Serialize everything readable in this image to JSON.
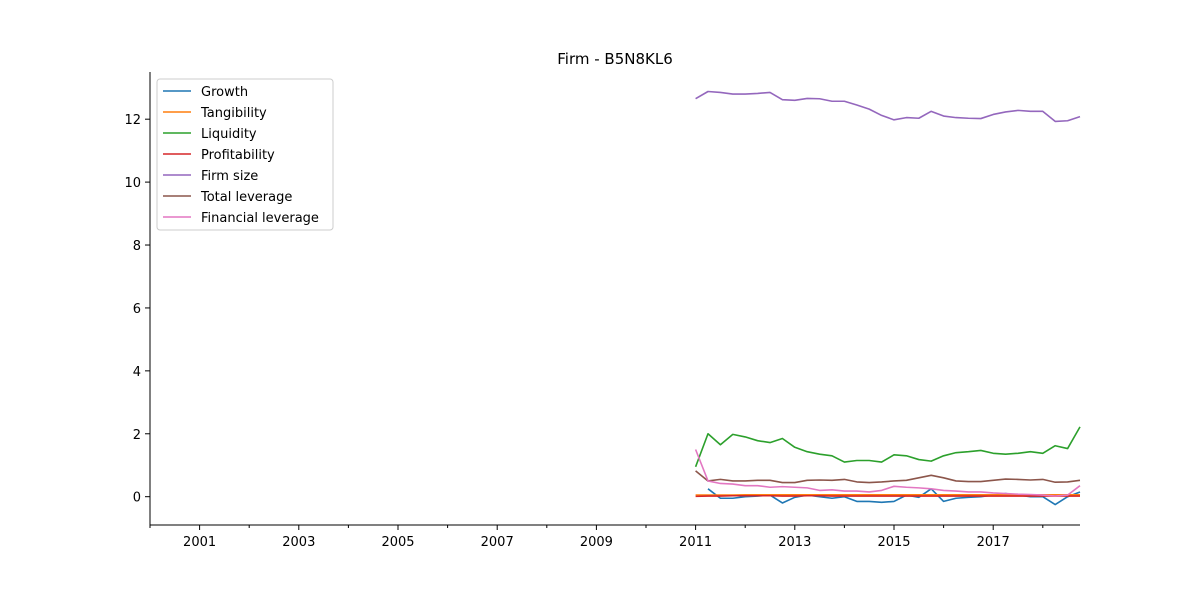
{
  "chart_data": {
    "type": "line",
    "title": "Firm - B5N8KL6",
    "xlabel": "",
    "ylabel": "",
    "xlim": [
      2000.0,
      2018.75
    ],
    "ylim": [
      -0.9,
      13.5
    ],
    "x_ticks": [
      2001,
      2003,
      2005,
      2007,
      2009,
      2011,
      2013,
      2015,
      2017
    ],
    "x_tick_labels": [
      "2001",
      "2003",
      "2005",
      "2007",
      "2009",
      "2011",
      "2013",
      "2015",
      "2017"
    ],
    "y_ticks": [
      0,
      2,
      4,
      6,
      8,
      10,
      12
    ],
    "y_tick_labels": [
      "0",
      "2",
      "4",
      "6",
      "8",
      "10",
      "12"
    ],
    "grid": false,
    "legend_position": "top-left",
    "x": [
      2011.0,
      2011.25,
      2011.5,
      2011.75,
      2012.0,
      2012.25,
      2012.5,
      2012.75,
      2013.0,
      2013.25,
      2013.5,
      2013.75,
      2014.0,
      2014.25,
      2014.5,
      2014.75,
      2015.0,
      2015.25,
      2015.5,
      2015.75,
      2016.0,
      2016.25,
      2016.5,
      2016.75,
      2017.0,
      2017.25,
      2017.5,
      2017.75,
      2018.0,
      2018.25,
      2018.5,
      2018.75
    ],
    "series": [
      {
        "name": "Growth",
        "color": "#1f77b4",
        "values": [
          null,
          0.25,
          -0.05,
          -0.05,
          0.0,
          0.02,
          0.05,
          -0.2,
          -0.02,
          0.05,
          0.0,
          -0.05,
          0.0,
          -0.15,
          -0.15,
          -0.18,
          -0.15,
          0.05,
          -0.02,
          0.25,
          -0.15,
          -0.05,
          -0.02,
          0.0,
          0.05,
          0.1,
          0.05,
          0.0,
          0.0,
          -0.25,
          0.0,
          0.15
        ]
      },
      {
        "name": "Tangibility",
        "color": "#ff7f0e",
        "values": [
          0.05,
          0.05,
          0.05,
          0.05,
          0.06,
          0.06,
          0.06,
          0.06,
          0.06,
          0.06,
          0.06,
          0.06,
          0.06,
          0.06,
          0.06,
          0.06,
          0.06,
          0.06,
          0.06,
          0.06,
          0.06,
          0.06,
          0.06,
          0.06,
          0.06,
          0.06,
          0.06,
          0.06,
          0.06,
          0.06,
          0.06,
          0.06
        ]
      },
      {
        "name": "Liquidity",
        "color": "#2ca02c",
        "values": [
          0.95,
          2.0,
          1.65,
          1.98,
          1.9,
          1.78,
          1.72,
          1.85,
          1.57,
          1.43,
          1.35,
          1.3,
          1.1,
          1.15,
          1.15,
          1.1,
          1.33,
          1.3,
          1.18,
          1.13,
          1.3,
          1.4,
          1.43,
          1.47,
          1.38,
          1.35,
          1.38,
          1.43,
          1.38,
          1.62,
          1.53,
          2.22
        ]
      },
      {
        "name": "Profitability",
        "color": "#d62728",
        "values": [
          0.01,
          0.02,
          0.02,
          0.03,
          0.03,
          0.03,
          0.03,
          0.02,
          0.02,
          0.03,
          0.03,
          0.02,
          0.02,
          0.02,
          0.02,
          0.02,
          0.02,
          0.02,
          0.02,
          0.02,
          0.02,
          0.02,
          0.02,
          0.02,
          0.02,
          0.02,
          0.02,
          0.02,
          0.02,
          0.02,
          0.02,
          0.02
        ]
      },
      {
        "name": "Firm size",
        "color": "#9467bd",
        "values": [
          12.65,
          12.88,
          12.85,
          12.8,
          12.8,
          12.82,
          12.85,
          12.62,
          12.6,
          12.66,
          12.65,
          12.57,
          12.57,
          12.45,
          12.32,
          12.12,
          11.98,
          12.05,
          12.03,
          12.25,
          12.1,
          12.05,
          12.03,
          12.02,
          12.15,
          12.23,
          12.28,
          12.25,
          12.25,
          11.93,
          11.95,
          12.08
        ]
      },
      {
        "name": "Total leverage",
        "color": "#8c564b",
        "values": [
          0.82,
          0.5,
          0.55,
          0.5,
          0.5,
          0.52,
          0.52,
          0.45,
          0.45,
          0.52,
          0.53,
          0.52,
          0.55,
          0.47,
          0.45,
          0.47,
          0.5,
          0.52,
          0.6,
          0.68,
          0.6,
          0.5,
          0.48,
          0.48,
          0.52,
          0.56,
          0.55,
          0.53,
          0.55,
          0.46,
          0.47,
          0.52
        ]
      },
      {
        "name": "Financial leverage",
        "color": "#e377c2",
        "values": [
          1.5,
          0.5,
          0.42,
          0.4,
          0.35,
          0.35,
          0.3,
          0.32,
          0.3,
          0.28,
          0.2,
          0.22,
          0.18,
          0.18,
          0.15,
          0.2,
          0.33,
          0.3,
          0.28,
          0.25,
          0.2,
          0.18,
          0.15,
          0.15,
          0.12,
          0.1,
          0.08,
          0.07,
          0.05,
          0.02,
          0.05,
          0.35
        ]
      }
    ]
  }
}
